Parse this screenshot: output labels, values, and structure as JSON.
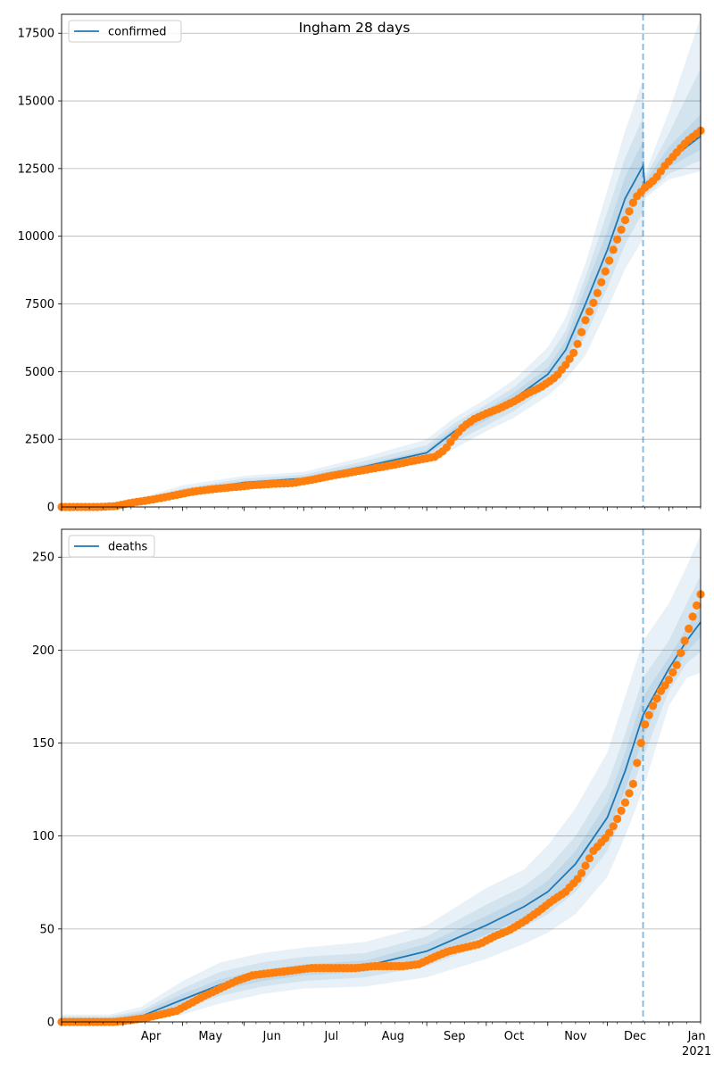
{
  "chart_data": [
    {
      "type": "line",
      "title": "Ingham 28 days",
      "xlabel": "",
      "ylabel": "",
      "ylim": [
        0,
        18200
      ],
      "yticks": [
        0,
        2500,
        5000,
        7500,
        10000,
        12500,
        15000,
        17500
      ],
      "grid": "y",
      "legend": {
        "placement": "top-left",
        "entries": [
          "confirmed"
        ]
      },
      "x_month_labels": [],
      "forecast_start": "2020-12-19",
      "series": [
        {
          "name": "confirmed",
          "kind": "model-median",
          "color": "#1f77b4",
          "x": [
            "2020-03-01",
            "2020-03-25",
            "2020-04-15",
            "2020-05-01",
            "2020-06-01",
            "2020-07-01",
            "2020-08-01",
            "2020-09-01",
            "2020-09-15",
            "2020-10-01",
            "2020-10-15",
            "2020-11-01",
            "2020-11-10",
            "2020-11-20",
            "2020-12-01",
            "2020-12-10",
            "2020-12-19",
            "2020-12-20",
            "2021-01-01",
            "2021-01-17"
          ],
          "y": [
            0,
            50,
            300,
            550,
            900,
            1050,
            1500,
            2000,
            2800,
            3400,
            4000,
            4900,
            5800,
            7500,
            9500,
            11400,
            12600,
            11800,
            12800,
            13700
          ]
        },
        {
          "name": "confirmed-observed",
          "kind": "observed",
          "color": "#ff7f0e",
          "x": [
            "2020-03-01",
            "2020-03-10",
            "2020-03-20",
            "2020-03-28",
            "2020-04-05",
            "2020-04-15",
            "2020-04-25",
            "2020-05-05",
            "2020-05-15",
            "2020-05-25",
            "2020-06-05",
            "2020-06-15",
            "2020-06-25",
            "2020-07-05",
            "2020-07-15",
            "2020-07-25",
            "2020-08-05",
            "2020-08-15",
            "2020-08-25",
            "2020-09-05",
            "2020-09-10",
            "2020-09-15",
            "2020-09-20",
            "2020-09-25",
            "2020-10-01",
            "2020-10-08",
            "2020-10-15",
            "2020-10-22",
            "2020-10-29",
            "2020-11-05",
            "2020-11-10",
            "2020-11-15",
            "2020-11-20",
            "2020-11-25",
            "2020-11-30",
            "2020-12-05",
            "2020-12-10",
            "2020-12-15",
            "2020-12-20",
            "2020-12-25",
            "2020-12-30",
            "2021-01-05",
            "2021-01-10",
            "2021-01-17"
          ],
          "y": [
            0,
            0,
            0,
            30,
            150,
            260,
            400,
            550,
            650,
            720,
            800,
            850,
            880,
            1000,
            1150,
            1280,
            1420,
            1550,
            1700,
            1850,
            2100,
            2600,
            3000,
            3250,
            3450,
            3650,
            3900,
            4200,
            4450,
            4800,
            5250,
            5800,
            6900,
            7700,
            8700,
            9700,
            10600,
            11400,
            11800,
            12100,
            12600,
            13100,
            13500,
            13900
          ]
        }
      ],
      "bands": [
        {
          "color": "#1f77b4",
          "opacity": 0.1,
          "x": [
            "2020-03-01",
            "2020-03-25",
            "2020-04-15",
            "2020-05-01",
            "2020-06-01",
            "2020-07-01",
            "2020-08-01",
            "2020-09-01",
            "2020-09-15",
            "2020-10-01",
            "2020-10-15",
            "2020-11-01",
            "2020-11-10",
            "2020-11-20",
            "2020-12-01",
            "2020-12-10",
            "2020-12-19",
            "2020-12-20",
            "2021-01-01",
            "2021-01-17"
          ],
          "lower": [
            0,
            20,
            180,
            380,
            700,
            850,
            1250,
            1650,
            2150,
            2800,
            3300,
            4100,
            4700,
            5600,
            7300,
            8800,
            9900,
            11400,
            12100,
            12400
          ],
          "upper": [
            0,
            120,
            450,
            800,
            1150,
            1300,
            1850,
            2500,
            3300,
            4000,
            4700,
            5900,
            7000,
            9000,
            11700,
            13900,
            15800,
            12300,
            14600,
            18100
          ]
        },
        {
          "color": "#1f77b4",
          "opacity": 0.1,
          "x": [
            "2020-03-01",
            "2020-03-25",
            "2020-04-15",
            "2020-05-01",
            "2020-06-01",
            "2020-07-01",
            "2020-08-01",
            "2020-09-01",
            "2020-09-15",
            "2020-10-01",
            "2020-10-15",
            "2020-11-01",
            "2020-11-10",
            "2020-11-20",
            "2020-12-01",
            "2020-12-10",
            "2020-12-19",
            "2020-12-20",
            "2021-01-01",
            "2021-01-17"
          ],
          "lower": [
            0,
            30,
            220,
            440,
            770,
            930,
            1350,
            1780,
            2400,
            3000,
            3550,
            4400,
            5100,
            6300,
            8100,
            9700,
            10900,
            11500,
            12300,
            12800
          ],
          "upper": [
            0,
            90,
            390,
            690,
            1050,
            1190,
            1700,
            2280,
            3100,
            3780,
            4420,
            5500,
            6500,
            8500,
            10900,
            12900,
            14400,
            12150,
            13800,
            16200
          ]
        },
        {
          "color": "#1f77b4",
          "opacity": 0.1,
          "x": [
            "2020-03-01",
            "2020-03-25",
            "2020-04-15",
            "2020-05-01",
            "2020-06-01",
            "2020-07-01",
            "2020-08-01",
            "2020-09-01",
            "2020-09-15",
            "2020-10-01",
            "2020-10-15",
            "2020-11-01",
            "2020-11-10",
            "2020-11-20",
            "2020-12-01",
            "2020-12-10",
            "2020-12-19",
            "2020-12-20",
            "2021-01-01",
            "2021-01-17"
          ],
          "lower": [
            0,
            40,
            260,
            500,
            840,
            1000,
            1430,
            1900,
            2600,
            3200,
            3780,
            4650,
            5450,
            6900,
            8800,
            10500,
            11700,
            11650,
            12550,
            13200
          ],
          "upper": [
            0,
            70,
            340,
            610,
            960,
            1110,
            1580,
            2110,
            2950,
            3600,
            4220,
            5150,
            6150,
            8100,
            10200,
            12200,
            13500,
            12000,
            13300,
            14500
          ]
        }
      ]
    },
    {
      "type": "line",
      "title": "",
      "xlabel": "",
      "ylabel": "",
      "ylim": [
        0,
        265
      ],
      "yticks": [
        0,
        50,
        100,
        150,
        200,
        250
      ],
      "grid": "y",
      "legend": {
        "placement": "top-left",
        "entries": [
          "deaths"
        ]
      },
      "x_month_labels": [
        "Apr",
        "May",
        "Jun",
        "Jul",
        "Aug",
        "Sep",
        "Oct",
        "Nov",
        "Dec",
        "Jan",
        "2021"
      ],
      "forecast_start": "2020-12-19",
      "series": [
        {
          "name": "deaths",
          "kind": "model-median",
          "color": "#1f77b4",
          "x": [
            "2020-03-01",
            "2020-03-25",
            "2020-04-10",
            "2020-05-01",
            "2020-05-20",
            "2020-06-10",
            "2020-07-01",
            "2020-08-01",
            "2020-09-01",
            "2020-10-01",
            "2020-10-20",
            "2020-11-01",
            "2020-11-15",
            "2020-12-01",
            "2020-12-10",
            "2020-12-19",
            "2021-01-01",
            "2021-01-10",
            "2021-01-17"
          ],
          "y": [
            0,
            1,
            3,
            12,
            20,
            25,
            28,
            30,
            38,
            52,
            62,
            70,
            85,
            110,
            135,
            165,
            190,
            205,
            215
          ]
        },
        {
          "name": "deaths-observed",
          "kind": "observed",
          "color": "#ff7f0e",
          "x": [
            "2020-03-01",
            "2020-03-10",
            "2020-03-20",
            "2020-03-28",
            "2020-04-05",
            "2020-04-12",
            "2020-04-20",
            "2020-04-28",
            "2020-05-05",
            "2020-05-12",
            "2020-05-20",
            "2020-05-28",
            "2020-06-05",
            "2020-06-12",
            "2020-06-20",
            "2020-06-28",
            "2020-07-05",
            "2020-07-12",
            "2020-07-20",
            "2020-07-28",
            "2020-08-05",
            "2020-08-12",
            "2020-08-20",
            "2020-08-28",
            "2020-09-05",
            "2020-09-12",
            "2020-09-20",
            "2020-09-28",
            "2020-10-05",
            "2020-10-12",
            "2020-10-20",
            "2020-10-28",
            "2020-11-03",
            "2020-11-10",
            "2020-11-17",
            "2020-11-24",
            "2020-12-01",
            "2020-12-05",
            "2020-12-10",
            "2020-12-14",
            "2020-12-17",
            "2020-12-20",
            "2020-12-24",
            "2020-12-28",
            "2021-01-01",
            "2021-01-05",
            "2021-01-09",
            "2021-01-13",
            "2021-01-17"
          ],
          "y": [
            0,
            0,
            0,
            0,
            1,
            2,
            4,
            6,
            10,
            14,
            18,
            22,
            25,
            26,
            27,
            28,
            29,
            29,
            29,
            29,
            30,
            30,
            30,
            31,
            35,
            38,
            40,
            42,
            46,
            49,
            54,
            60,
            65,
            70,
            78,
            92,
            100,
            107,
            118,
            128,
            145,
            160,
            170,
            178,
            184,
            192,
            205,
            218,
            230
          ]
        }
      ],
      "bands": [
        {
          "color": "#1f77b4",
          "opacity": 0.1,
          "x": [
            "2020-03-01",
            "2020-03-25",
            "2020-04-10",
            "2020-05-01",
            "2020-05-20",
            "2020-06-10",
            "2020-07-01",
            "2020-08-01",
            "2020-09-01",
            "2020-10-01",
            "2020-10-20",
            "2020-11-01",
            "2020-11-15",
            "2020-12-01",
            "2020-12-10",
            "2020-12-19",
            "2021-01-01",
            "2021-01-10",
            "2021-01-17"
          ],
          "lower": [
            0,
            0,
            0,
            4,
            10,
            15,
            18,
            19,
            24,
            34,
            42,
            48,
            58,
            78,
            100,
            125,
            170,
            185,
            188
          ],
          "upper": [
            4,
            4,
            8,
            22,
            32,
            37,
            40,
            43,
            52,
            72,
            82,
            95,
            115,
            145,
            175,
            205,
            225,
            245,
            262
          ]
        },
        {
          "color": "#1f77b4",
          "opacity": 0.1,
          "x": [
            "2020-03-01",
            "2020-03-25",
            "2020-04-10",
            "2020-05-01",
            "2020-05-20",
            "2020-06-10",
            "2020-07-01",
            "2020-08-01",
            "2020-09-01",
            "2020-10-01",
            "2020-10-20",
            "2020-11-01",
            "2020-11-15",
            "2020-12-01",
            "2020-12-10",
            "2020-12-19",
            "2021-01-01",
            "2021-01-10",
            "2021-01-17"
          ],
          "lower": [
            0,
            0,
            1,
            7,
            14,
            19,
            22,
            24,
            30,
            42,
            51,
            58,
            70,
            92,
            115,
            142,
            178,
            193,
            199
          ],
          "upper": [
            3,
            3,
            6,
            18,
            27,
            32,
            35,
            37,
            46,
            63,
            73,
            83,
            100,
            128,
            155,
            185,
            205,
            225,
            240
          ]
        },
        {
          "color": "#1f77b4",
          "opacity": 0.1,
          "x": [
            "2020-03-01",
            "2020-03-25",
            "2020-04-10",
            "2020-05-01",
            "2020-05-20",
            "2020-06-10",
            "2020-07-01",
            "2020-08-01",
            "2020-09-01",
            "2020-10-01",
            "2020-10-20",
            "2020-11-01",
            "2020-11-15",
            "2020-12-01",
            "2020-12-10",
            "2020-12-19",
            "2021-01-01",
            "2021-01-10",
            "2021-01-17"
          ],
          "lower": [
            0,
            0,
            2,
            9,
            17,
            22,
            25,
            27,
            34,
            47,
            56,
            64,
            77,
            101,
            125,
            153,
            184,
            199,
            207
          ],
          "upper": [
            2,
            2,
            5,
            15,
            23,
            28,
            31,
            33,
            42,
            57,
            67,
            76,
            92,
            118,
            145,
            175,
            196,
            212,
            223
          ]
        }
      ]
    }
  ]
}
